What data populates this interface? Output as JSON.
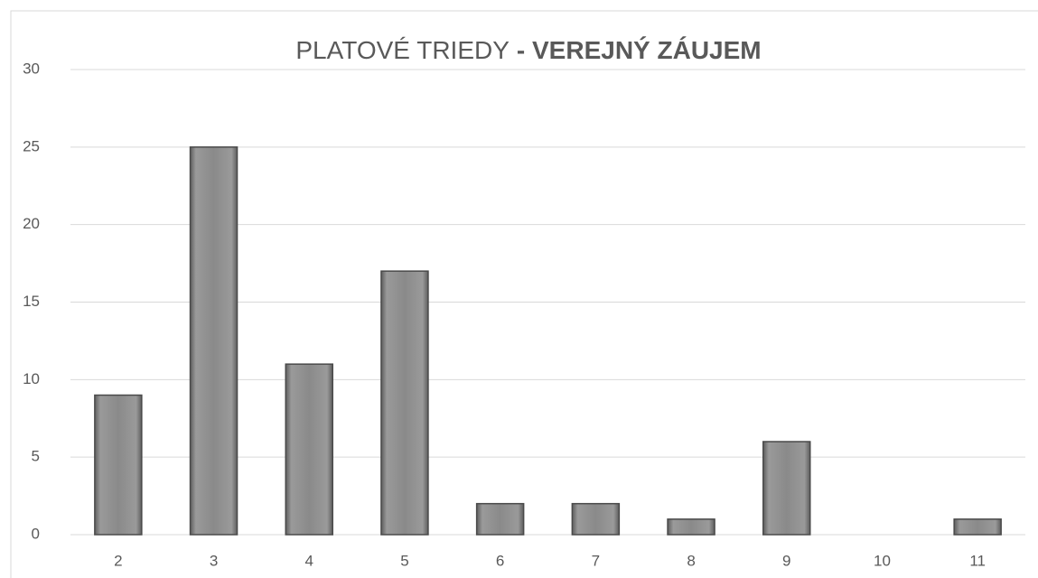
{
  "chart_data": {
    "type": "bar",
    "title": {
      "text": "PLATOVÉ TRIEDY",
      "emphasis": "- VEREJNÝ ZÁUJEM"
    },
    "categories": [
      "2",
      "3",
      "4",
      "5",
      "6",
      "7",
      "8",
      "9",
      "10",
      "11"
    ],
    "values": [
      9,
      25,
      11,
      17,
      2,
      2,
      1,
      6,
      0,
      1
    ],
    "color": "#8c8c8c",
    "ylim": [
      0,
      30
    ],
    "yticks": [
      0,
      5,
      10,
      15,
      20,
      25,
      30
    ],
    "grid": true
  }
}
